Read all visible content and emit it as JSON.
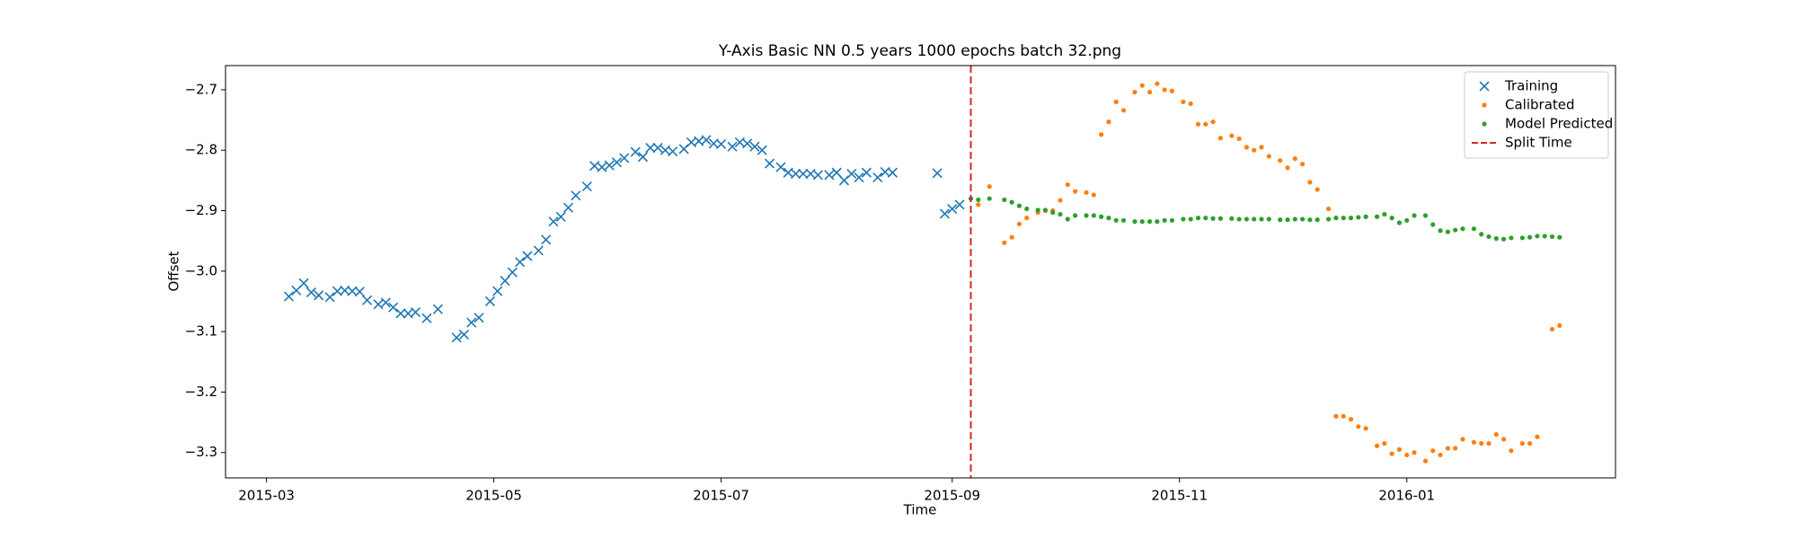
{
  "chart_data": {
    "type": "scatter",
    "title": "Y-Axis Basic NN 0.5 years 1000 epochs batch 32.png",
    "x_label": "Time",
    "y_label": "Offset",
    "xlim": [
      16484,
      16857
    ],
    "xticks": [
      {
        "value": 16495,
        "label": "2015-03"
      },
      {
        "value": 16556,
        "label": "2015-05"
      },
      {
        "value": 16617,
        "label": "2015-07"
      },
      {
        "value": 16679,
        "label": "2015-09"
      },
      {
        "value": 16740,
        "label": "2015-11"
      },
      {
        "value": 16801,
        "label": "2016-01"
      }
    ],
    "ylim": [
      -3.342,
      -2.66
    ],
    "yticks": [
      {
        "value": -3.3,
        "label": "−3.3"
      },
      {
        "value": -3.2,
        "label": "−3.2"
      },
      {
        "value": -3.1,
        "label": "−3.1"
      },
      {
        "value": -3.0,
        "label": "−3.0"
      },
      {
        "value": -2.9,
        "label": "−2.9"
      },
      {
        "value": -2.8,
        "label": "−2.8"
      },
      {
        "value": -2.7,
        "label": "−2.7"
      }
    ],
    "grid": false,
    "legend": "upper right",
    "series": [
      {
        "name": "Training",
        "color": "#1f77b4",
        "marker": "x",
        "x": [
          16501,
          16503,
          16505,
          16507,
          16509,
          16512,
          16514,
          16516,
          16518,
          16520,
          16522,
          16525,
          16527,
          16529,
          16531,
          16533,
          16535,
          16538,
          16541,
          16546,
          16548,
          16550,
          16552,
          16555,
          16557,
          16559,
          16561,
          16563,
          16565,
          16568,
          16570,
          16572,
          16574,
          16576,
          16578,
          16581,
          16583,
          16585,
          16587,
          16589,
          16591,
          16594,
          16596,
          16598,
          16600,
          16602,
          16604,
          16607,
          16609,
          16611,
          16613,
          16615,
          16617,
          16620,
          16622,
          16624,
          16626,
          16628,
          16630,
          16633,
          16635,
          16637,
          16639,
          16641,
          16643,
          16646,
          16648,
          16650,
          16652,
          16654,
          16656,
          16659,
          16661,
          16663,
          16675,
          16677,
          16679,
          16681
        ],
        "values": [
          -3.042,
          -3.032,
          -3.02,
          -3.035,
          -3.04,
          -3.043,
          -3.033,
          -3.032,
          -3.033,
          -3.034,
          -3.048,
          -3.055,
          -3.052,
          -3.06,
          -3.07,
          -3.07,
          -3.068,
          -3.078,
          -3.063,
          -3.11,
          -3.105,
          -3.085,
          -3.077,
          -3.05,
          -3.033,
          -3.016,
          -3.002,
          -2.985,
          -2.975,
          -2.966,
          -2.948,
          -2.918,
          -2.91,
          -2.895,
          -2.875,
          -2.86,
          -2.826,
          -2.828,
          -2.825,
          -2.82,
          -2.813,
          -2.803,
          -2.811,
          -2.796,
          -2.796,
          -2.8,
          -2.802,
          -2.798,
          -2.787,
          -2.785,
          -2.783,
          -2.789,
          -2.79,
          -2.794,
          -2.787,
          -2.789,
          -2.794,
          -2.8,
          -2.822,
          -2.828,
          -2.837,
          -2.839,
          -2.839,
          -2.839,
          -2.841,
          -2.841,
          -2.837,
          -2.85,
          -2.839,
          -2.845,
          -2.837,
          -2.845,
          -2.836,
          -2.837,
          -2.838,
          -2.905,
          -2.897,
          -2.89
        ]
      },
      {
        "name": "Calibrated",
        "color": "#ff7f0e",
        "marker": "dot",
        "x": [
          16686,
          16689,
          16693,
          16695,
          16697,
          16699,
          16702,
          16704,
          16706,
          16708,
          16710,
          16712,
          16715,
          16717,
          16719,
          16721,
          16723,
          16725,
          16728,
          16730,
          16732,
          16734,
          16736,
          16738,
          16741,
          16743,
          16745,
          16747,
          16749,
          16751,
          16754,
          16756,
          16758,
          16760,
          16762,
          16764,
          16767,
          16769,
          16771,
          16773,
          16775,
          16777,
          16780,
          16782,
          16784,
          16786,
          16788,
          16790,
          16793,
          16795,
          16797,
          16799,
          16801,
          16803,
          16806,
          16808,
          16810,
          16812,
          16814,
          16816,
          16819,
          16821,
          16823,
          16825,
          16827,
          16829,
          16832,
          16834,
          16836,
          16840,
          16842
        ],
        "values": [
          -2.89,
          -2.86,
          -2.953,
          -2.944,
          -2.922,
          -2.912,
          -2.903,
          -2.9,
          -2.9,
          -2.883,
          -2.857,
          -2.868,
          -2.87,
          -2.874,
          -2.774,
          -2.753,
          -2.72,
          -2.734,
          -2.704,
          -2.693,
          -2.704,
          -2.69,
          -2.7,
          -2.702,
          -2.72,
          -2.723,
          -2.757,
          -2.757,
          -2.753,
          -2.78,
          -2.776,
          -2.781,
          -2.795,
          -2.8,
          -2.795,
          -2.81,
          -2.817,
          -2.829,
          -2.814,
          -2.823,
          -2.853,
          -2.865,
          -2.897,
          -3.24,
          -3.24,
          -3.245,
          -3.257,
          -3.26,
          -3.289,
          -3.285,
          -3.302,
          -3.295,
          -3.304,
          -3.3,
          -3.314,
          -3.297,
          -3.304,
          -3.293,
          -3.293,
          -3.278,
          -3.283,
          -3.285,
          -3.285,
          -3.27,
          -3.278,
          -3.297,
          -3.285,
          -3.285,
          -3.274,
          -3.096,
          -3.09
        ]
      },
      {
        "name": "Model Predicted",
        "color": "#2ca02c",
        "marker": "dot",
        "x": [
          16684,
          16686,
          16689,
          16693,
          16695,
          16697,
          16699,
          16702,
          16704,
          16706,
          16708,
          16710,
          16712,
          16715,
          16717,
          16719,
          16721,
          16723,
          16725,
          16728,
          16730,
          16732,
          16734,
          16736,
          16738,
          16741,
          16743,
          16745,
          16747,
          16749,
          16751,
          16754,
          16756,
          16758,
          16760,
          16762,
          16764,
          16767,
          16769,
          16771,
          16773,
          16775,
          16777,
          16780,
          16782,
          16784,
          16786,
          16788,
          16790,
          16793,
          16795,
          16797,
          16799,
          16801,
          16803,
          16806,
          16808,
          16810,
          16812,
          16814,
          16816,
          16819,
          16821,
          16823,
          16825,
          16827,
          16829,
          16832,
          16834,
          16836,
          16838,
          16840,
          16842
        ],
        "values": [
          -2.88,
          -2.882,
          -2.88,
          -2.882,
          -2.886,
          -2.892,
          -2.897,
          -2.899,
          -2.899,
          -2.903,
          -2.906,
          -2.914,
          -2.908,
          -2.908,
          -2.908,
          -2.91,
          -2.912,
          -2.916,
          -2.916,
          -2.918,
          -2.918,
          -2.918,
          -2.918,
          -2.916,
          -2.916,
          -2.914,
          -2.914,
          -2.912,
          -2.912,
          -2.913,
          -2.913,
          -2.913,
          -2.914,
          -2.914,
          -2.914,
          -2.914,
          -2.914,
          -2.915,
          -2.915,
          -2.914,
          -2.914,
          -2.915,
          -2.915,
          -2.914,
          -2.912,
          -2.912,
          -2.912,
          -2.911,
          -2.91,
          -2.91,
          -2.906,
          -2.912,
          -2.92,
          -2.916,
          -2.908,
          -2.908,
          -2.923,
          -2.933,
          -2.935,
          -2.932,
          -2.93,
          -2.93,
          -2.939,
          -2.943,
          -2.946,
          -2.947,
          -2.945,
          -2.945,
          -2.944,
          -2.942,
          -2.942,
          -2.943,
          -2.944
        ]
      }
    ],
    "vlines": [
      {
        "name": "Split Time",
        "x": 16684,
        "color": "#d62728"
      }
    ]
  }
}
